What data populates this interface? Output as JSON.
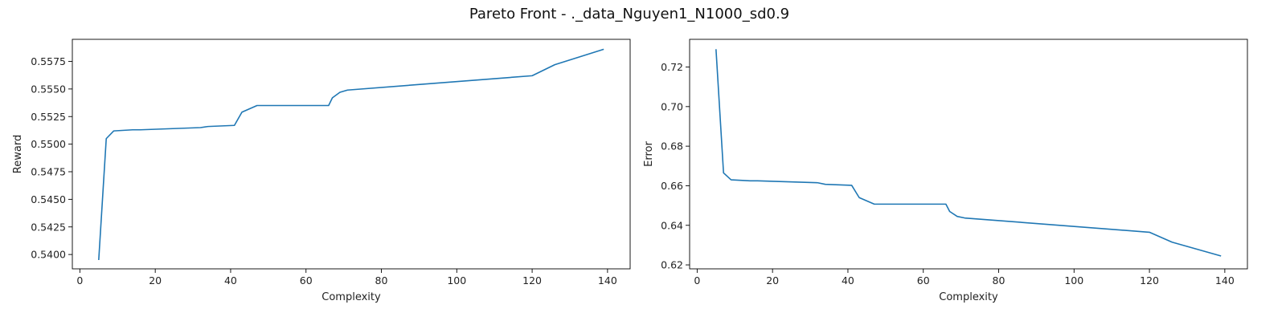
{
  "figure": {
    "title": "Pareto Front - ._data_Nguyen1_N1000_sd0.9"
  },
  "style": {
    "line_color": "#1f77b4",
    "axis_color": "#000000"
  },
  "chart_data": [
    {
      "type": "line",
      "title": "",
      "xlabel": "Complexity",
      "ylabel": "Reward",
      "xlim": [
        -2,
        146
      ],
      "ylim": [
        0.5387,
        0.5595
      ],
      "xticks": [
        0,
        20,
        40,
        60,
        80,
        100,
        120,
        140
      ],
      "xtick_labels": [
        "0",
        "20",
        "40",
        "60",
        "80",
        "100",
        "120",
        "140"
      ],
      "yticks": [
        0.54,
        0.5425,
        0.545,
        0.5475,
        0.55,
        0.5525,
        0.555,
        0.5575
      ],
      "ytick_labels": [
        "0.5400",
        "0.5425",
        "0.5450",
        "0.5475",
        "0.5500",
        "0.5525",
        "0.5550",
        "0.5575"
      ],
      "series": [
        {
          "x": [
            5,
            7,
            9,
            14,
            16,
            32,
            34,
            41,
            43,
            47,
            66,
            67,
            69,
            71,
            120,
            126,
            139
          ],
          "y": [
            0.5395,
            0.5505,
            0.5512,
            0.5513,
            0.5513,
            0.5515,
            0.5516,
            0.5517,
            0.5529,
            0.5535,
            0.5535,
            0.5542,
            0.5547,
            0.5549,
            0.5562,
            0.5572,
            0.5586
          ]
        }
      ]
    },
    {
      "type": "line",
      "title": "",
      "xlabel": "Complexity",
      "ylabel": "Error",
      "xlim": [
        -2,
        146
      ],
      "ylim": [
        0.618,
        0.734
      ],
      "xticks": [
        0,
        20,
        40,
        60,
        80,
        100,
        120,
        140
      ],
      "xtick_labels": [
        "0",
        "20",
        "40",
        "60",
        "80",
        "100",
        "120",
        "140"
      ],
      "yticks": [
        0.62,
        0.64,
        0.66,
        0.68,
        0.7,
        0.72
      ],
      "ytick_labels": [
        "0.62",
        "0.64",
        "0.66",
        "0.68",
        "0.70",
        "0.72"
      ],
      "series": [
        {
          "x": [
            5,
            7,
            9,
            14,
            16,
            32,
            34,
            41,
            43,
            47,
            66,
            67,
            69,
            71,
            120,
            126,
            139
          ],
          "y": [
            0.729,
            0.6665,
            0.663,
            0.6625,
            0.6625,
            0.6615,
            0.6607,
            0.6602,
            0.654,
            0.6507,
            0.6507,
            0.647,
            0.6445,
            0.6437,
            0.6365,
            0.6315,
            0.6245
          ]
        }
      ]
    }
  ]
}
